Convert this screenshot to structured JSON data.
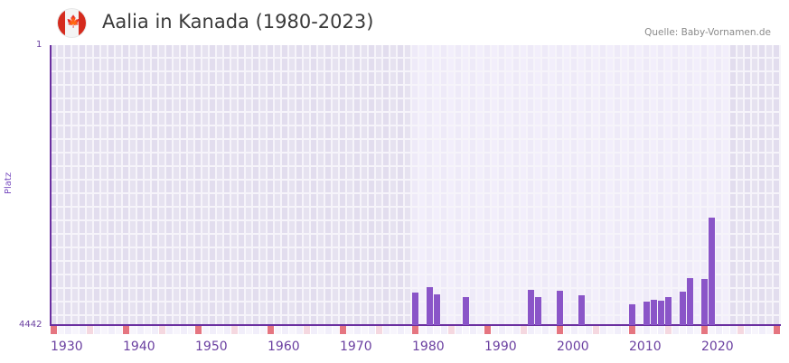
{
  "header": {
    "title": "Aalia in Kanada (1980-2023)",
    "source": "Quelle: Baby-Vornamen.de",
    "flag_icon": "canada-flag-icon"
  },
  "colors": {
    "bar": "#8a55c8",
    "axis": "#6a2fa0",
    "decade_marker": "#e57580",
    "half_decade_marker": "#f5d8e0",
    "range_bg_dark": "#e3dff0",
    "range_bg_light": "#efebfa"
  },
  "chart_data": {
    "type": "bar",
    "title": "Aalia in Kanada (1980-2023)",
    "xlabel": "",
    "ylabel": "Platz",
    "ylim": [
      4442,
      1
    ],
    "y_inverted_rank": true,
    "y_ticks": [
      "1",
      "4442"
    ],
    "x_ticks": [
      "1930",
      "1940",
      "1950",
      "1960",
      "1970",
      "1980",
      "1990",
      "2000",
      "2010",
      "2020"
    ],
    "grid": true,
    "categories": [
      "1980",
      "1982",
      "1983",
      "1987",
      "1996",
      "1997",
      "2000",
      "2003",
      "2010",
      "2012",
      "2013",
      "2014",
      "2015",
      "2017",
      "2018",
      "2020",
      "2021"
    ],
    "values": [
      3926,
      3840,
      3955,
      3998,
      3883,
      3998,
      3898,
      3969,
      4113,
      4070,
      4041,
      4055,
      3998,
      3912,
      3697,
      3711,
      2737
    ]
  },
  "axis": {
    "y_top": "1",
    "y_bottom": "4442",
    "y_label": "Platz",
    "x_labels": [
      "1930",
      "1940",
      "1950",
      "1960",
      "1970",
      "1980",
      "1990",
      "2000",
      "2010",
      "2020"
    ]
  }
}
